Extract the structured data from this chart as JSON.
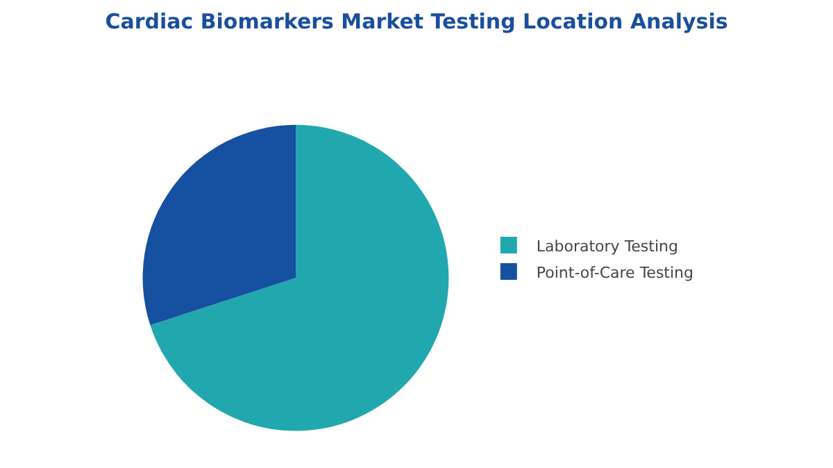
{
  "chart_data": {
    "type": "pie",
    "title": "Cardiac Biomarkers Market Testing Location Analysis",
    "categories": [
      "Laboratory Testing",
      "Point-of-Care Testing"
    ],
    "values": [
      70,
      30
    ],
    "colors": [
      "#21a8ae",
      "#1650a0"
    ],
    "legend": "right"
  }
}
